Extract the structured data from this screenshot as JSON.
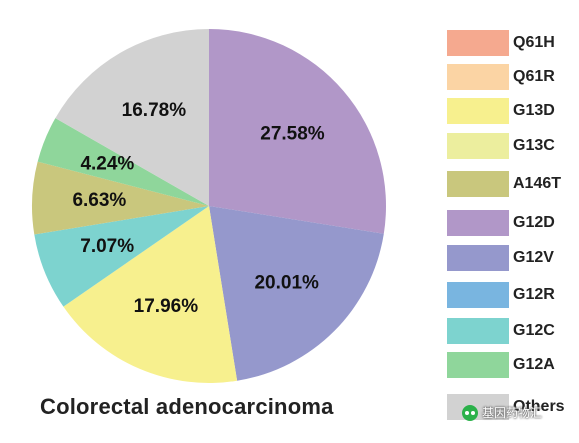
{
  "chart_data": {
    "type": "pie",
    "title": "Colorectal adenocarcinoma",
    "start_angle_deg": 0,
    "direction": "clockwise",
    "slices": [
      {
        "name": "G12D",
        "value": 27.58,
        "label": "27.58%",
        "color": "#b197c8"
      },
      {
        "name": "G12V",
        "value": 20.01,
        "label": "20.01%",
        "color": "#9598cc"
      },
      {
        "name": "G13D",
        "value": 17.96,
        "label": "17.96%",
        "color": "#f7f08e"
      },
      {
        "name": "G12C",
        "value": 7.07,
        "label": "7.07%",
        "color": "#7dd3cf"
      },
      {
        "name": "A146T",
        "value": 6.63,
        "label": "6.63%",
        "color": "#c9c77d"
      },
      {
        "name": "G12A",
        "value": 4.24,
        "label": "4.24%",
        "color": "#8fd69b"
      },
      {
        "name": "Others",
        "value": 16.78,
        "label": "16.78%",
        "color": "#d2d2d2"
      }
    ],
    "legend": {
      "placement": "right",
      "entries": [
        {
          "name": "Q61H",
          "color": "#f5a98f"
        },
        {
          "name": "Q61R",
          "color": "#fbd4a4"
        },
        {
          "name": "G13D",
          "color": "#f7f08e"
        },
        {
          "name": "G13C",
          "color": "#ecee9e"
        },
        {
          "name": "A146T",
          "color": "#c9c77d"
        },
        {
          "name": "G12D",
          "color": "#b197c8"
        },
        {
          "name": "G12V",
          "color": "#9598cc"
        },
        {
          "name": "G12R",
          "color": "#79b5e0"
        },
        {
          "name": "G12C",
          "color": "#7dd3cf"
        },
        {
          "name": "G12A",
          "color": "#8fd69b"
        },
        {
          "name": "Others",
          "color": "#d2d2d2"
        }
      ]
    }
  },
  "watermark": {
    "text": "基因药物汇",
    "icon": "wechat-icon"
  }
}
